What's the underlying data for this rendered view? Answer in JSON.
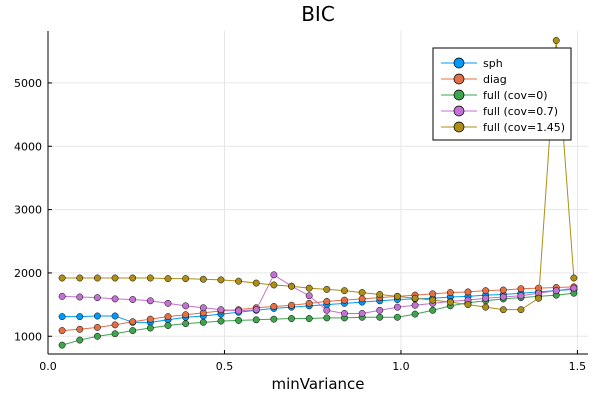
{
  "chart_data": {
    "type": "line",
    "title": "BIC",
    "xlabel": "minVariance",
    "ylabel": "",
    "xlim": [
      0.0,
      1.53
    ],
    "ylim": [
      720,
      5820
    ],
    "xticks": [
      0.0,
      0.5,
      1.0,
      1.5
    ],
    "xtick_labels": [
      "0.0",
      "0.5",
      "1.0",
      "1.5"
    ],
    "yticks": [
      1000,
      2000,
      3000,
      4000,
      5000
    ],
    "ytick_labels": [
      "1000",
      "2000",
      "3000",
      "4000",
      "5000"
    ],
    "grid": true,
    "legend_position": "top-right",
    "x": [
      0.04,
      0.09,
      0.14,
      0.19,
      0.24,
      0.29,
      0.34,
      0.39,
      0.44,
      0.49,
      0.54,
      0.59,
      0.64,
      0.69,
      0.74,
      0.79,
      0.84,
      0.89,
      0.94,
      0.99,
      1.04,
      1.09,
      1.14,
      1.19,
      1.24,
      1.29,
      1.34,
      1.39,
      1.44,
      1.49
    ],
    "series": [
      {
        "name": "sph",
        "color": "#009AFA",
        "values": [
          1310,
          1310,
          1320,
          1320,
          1220,
          1220,
          1260,
          1300,
          1320,
          1350,
          1380,
          1410,
          1440,
          1460,
          1480,
          1500,
          1520,
          1540,
          1560,
          1580,
          1590,
          1600,
          1620,
          1630,
          1650,
          1660,
          1680,
          1700,
          1720,
          1740
        ]
      },
      {
        "name": "diag",
        "color": "#E36F47",
        "values": [
          1090,
          1110,
          1140,
          1180,
          1230,
          1270,
          1310,
          1340,
          1370,
          1400,
          1420,
          1450,
          1470,
          1490,
          1520,
          1550,
          1570,
          1590,
          1610,
          1630,
          1650,
          1670,
          1690,
          1700,
          1720,
          1730,
          1750,
          1760,
          1770,
          1780
        ]
      },
      {
        "name": "full (cov=0)",
        "color": "#3EA44E",
        "values": [
          860,
          940,
          1000,
          1040,
          1090,
          1130,
          1170,
          1200,
          1220,
          1240,
          1250,
          1260,
          1270,
          1280,
          1280,
          1290,
          1290,
          1300,
          1300,
          1300,
          1350,
          1410,
          1480,
          1530,
          1560,
          1590,
          1610,
          1630,
          1650,
          1680
        ]
      },
      {
        "name": "full (cov=0.7)",
        "color": "#C371D2",
        "values": [
          1630,
          1620,
          1610,
          1590,
          1580,
          1560,
          1520,
          1480,
          1450,
          1420,
          1400,
          1420,
          1970,
          1790,
          1640,
          1410,
          1360,
          1360,
          1410,
          1460,
          1490,
          1520,
          1550,
          1570,
          1600,
          1620,
          1640,
          1680,
          1720,
          1760
        ]
      },
      {
        "name": "full (cov=1.45)",
        "color": "#AC8E18",
        "values": [
          1920,
          1920,
          1920,
          1920,
          1920,
          1920,
          1910,
          1910,
          1900,
          1890,
          1870,
          1840,
          1810,
          1790,
          1760,
          1740,
          1720,
          1690,
          1660,
          1630,
          1600,
          1570,
          1540,
          1500,
          1460,
          1420,
          1420,
          1600,
          5670,
          1920
        ]
      }
    ]
  }
}
